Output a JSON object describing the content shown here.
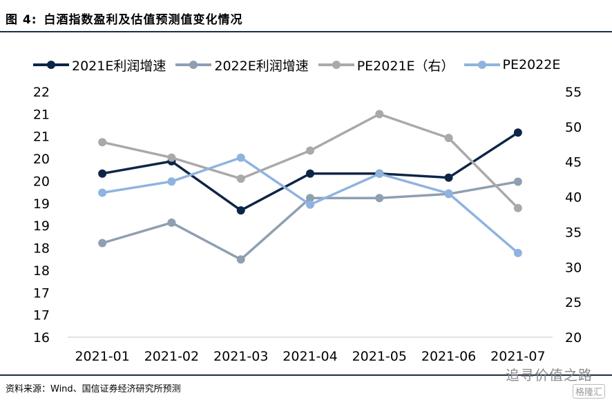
{
  "header": {
    "figure_label": "图 4:",
    "title": "白酒指数盈利及估值预测值变化情况"
  },
  "footer": {
    "source": "资料来源：Wind、国信证券经济研究所预测",
    "watermark": "追寻价值之路",
    "logo": "格隆汇"
  },
  "chart_data": {
    "type": "line",
    "categories": [
      "2021-01",
      "2021-02",
      "2021-03",
      "2021-04",
      "2021-05",
      "2021-06",
      "2021-07"
    ],
    "left_axis": {
      "ylim": [
        16,
        22
      ],
      "tick_labels": [
        "22",
        "21",
        "21",
        "20",
        "20",
        "19",
        "19",
        "18",
        "18",
        "17",
        "17",
        "16"
      ]
    },
    "right_axis": {
      "ylim": [
        20,
        55
      ],
      "tick_labels": [
        "55",
        "50",
        "45",
        "40",
        "35",
        "30",
        "25",
        "20"
      ]
    },
    "legend_position": "top",
    "grid": false,
    "series": [
      {
        "name": "2021E利润增速",
        "axis": "left",
        "color": "#0d2547",
        "values": [
          20.0,
          20.3,
          19.1,
          20.0,
          20.0,
          19.9,
          21.0
        ]
      },
      {
        "name": "2022E利润增速",
        "axis": "left",
        "color": "#8e9fb1",
        "values": [
          18.3,
          18.8,
          17.9,
          19.4,
          19.4,
          19.5,
          19.8
        ]
      },
      {
        "name": "PE2021E（右）",
        "axis": "right",
        "color": "#a9a9a9",
        "values": [
          47.8,
          45.6,
          42.6,
          46.6,
          51.8,
          48.4,
          38.4
        ]
      },
      {
        "name": "PE2022E",
        "axis": "right",
        "color": "#8fb3df",
        "values": [
          40.6,
          42.2,
          45.6,
          38.9,
          43.3,
          40.5,
          32.0
        ]
      }
    ]
  }
}
